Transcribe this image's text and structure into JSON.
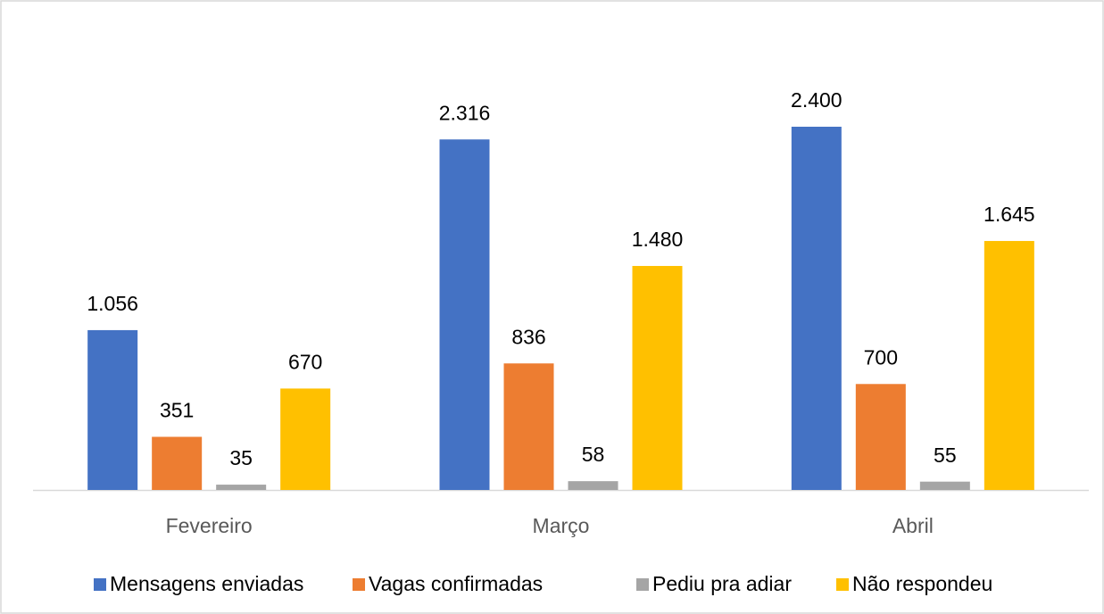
{
  "chart_data": {
    "type": "bar",
    "categories": [
      "Fevereiro",
      "Março",
      "Abril"
    ],
    "series": [
      {
        "name": "Mensagens enviadas",
        "color": "#4472c4",
        "values": [
          1056,
          2316,
          2400
        ],
        "value_labels": [
          "1.056",
          "2.316",
          "2.400"
        ]
      },
      {
        "name": "Vagas confirmadas",
        "color": "#ed7d31",
        "values": [
          351,
          836,
          700
        ]
      },
      {
        "name": "Pediu pra adiar",
        "color": "#a5a5a5",
        "values": [
          35,
          58,
          55
        ]
      },
      {
        "name": "Não respondeu",
        "color": "#ffc000",
        "values": [
          670,
          1480,
          1645
        ],
        "value_labels": [
          "670",
          "1.480",
          "1.645"
        ]
      }
    ],
    "legend": "bottom"
  }
}
